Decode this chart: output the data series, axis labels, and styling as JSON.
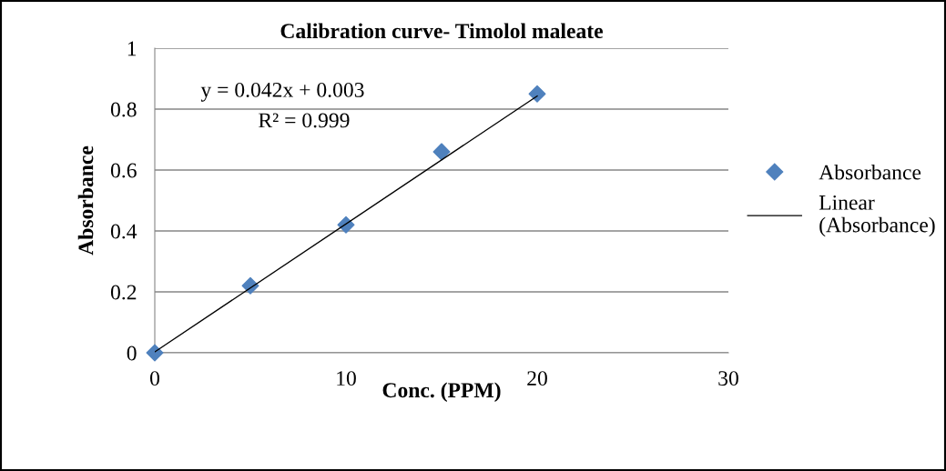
{
  "chart_data": {
    "type": "scatter",
    "title": "Calibration curve- Timolol maleate",
    "xlabel": "Conc. (PPM)",
    "ylabel": "Absorbance",
    "xlim": [
      0,
      30
    ],
    "xticks": [
      0,
      10,
      20,
      30
    ],
    "ylim": [
      0,
      1
    ],
    "yticks": [
      0,
      0.2,
      0.4,
      0.6,
      0.8,
      1
    ],
    "grid": "y",
    "legend": "right",
    "series": [
      {
        "name": "Absorbance",
        "marker": "diamond",
        "color": "#4f81bd",
        "x": [
          0,
          5,
          10,
          15,
          20
        ],
        "values": [
          0,
          0.22,
          0.42,
          0.66,
          0.85
        ]
      },
      {
        "name": "Linear (Absorbance)",
        "type": "line",
        "color": "#000000",
        "x": [
          0,
          20
        ],
        "values": [
          0.003,
          0.843
        ]
      }
    ],
    "annotations": [
      "y = 0.042x + 0.003",
      "R² = 0.999"
    ]
  }
}
